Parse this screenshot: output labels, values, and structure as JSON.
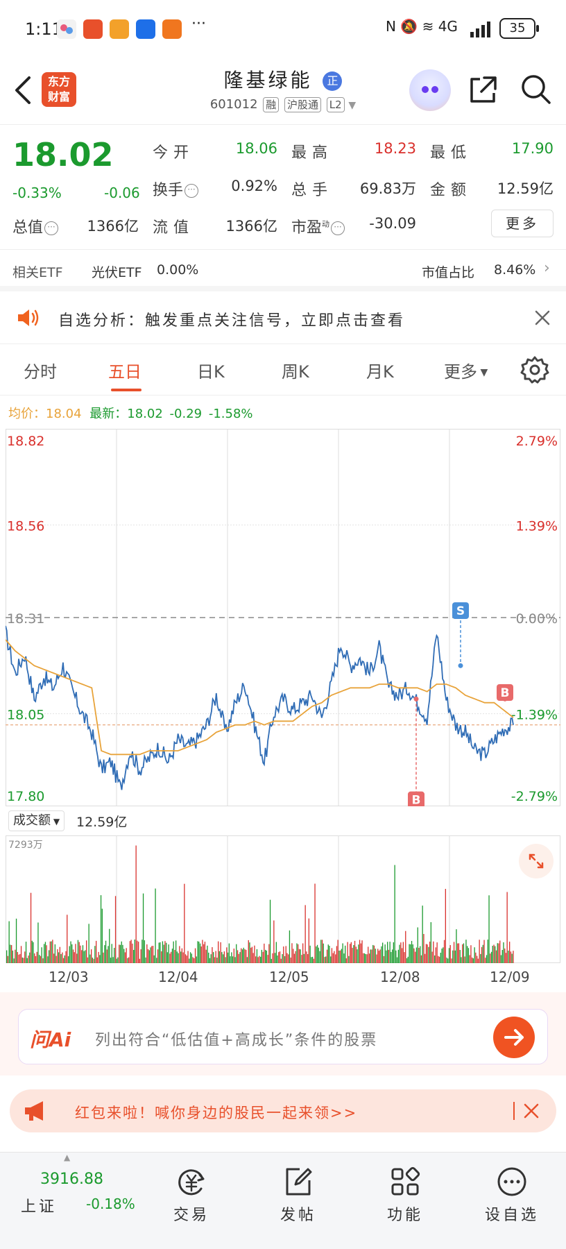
{
  "status_bar": {
    "time": "1:11",
    "more": "···",
    "right_icons": "N  🔕  ≋  4G",
    "battery": "35"
  },
  "header": {
    "logo_line1": "东方",
    "logo_line2": "财富",
    "stock_name": "隆基绿能",
    "name_badge": "正",
    "stock_code": "601012",
    "tags": [
      "融",
      "沪股通",
      "L2"
    ]
  },
  "quote": {
    "price": "18.02",
    "change_pct": "-0.33%",
    "change": "-0.06",
    "open_label": "今开",
    "open": "18.06",
    "high_label": "最高",
    "high": "18.23",
    "low_label": "最低",
    "low": "17.90",
    "turnover_label": "换手",
    "turnover": "0.92%",
    "volume_label": "总手",
    "volume": "69.83万",
    "amount_label": "金额",
    "amount": "12.59亿",
    "mcap_label": "总值",
    "mcap": "1366亿",
    "float_label": "流值",
    "float": "1366亿",
    "pe_label": "市盈",
    "pe_sup": "动",
    "pe": "-30.09",
    "more_button": "更多"
  },
  "etf": {
    "label": "相关ETF",
    "name": "光伏ETF",
    "value": "0.00%",
    "ratio_label": "市值占比",
    "ratio": "8.46%"
  },
  "notice": {
    "text": "自选分析：触发重点关注信号，立即点击查看"
  },
  "tabs": {
    "items": [
      "分时",
      "五日",
      "日K",
      "周K",
      "月K",
      "更多"
    ],
    "active": "五日"
  },
  "avg_line": {
    "avg_label": "均价：18.04",
    "latest_label": "最新：18.02",
    "change": "-0.29",
    "change_pct": "-1.58%"
  },
  "chart_data": {
    "type": "line",
    "title": "",
    "y_left_ticks": [
      "18.82",
      "18.56",
      "18.31",
      "18.05",
      "17.80"
    ],
    "y_right_ticks": [
      "2.79%",
      "1.39%",
      "0.00%",
      "-1.39%",
      "-2.79%"
    ],
    "prev_close": 18.31,
    "ylim": [
      17.8,
      18.82
    ],
    "x_ticks": [
      "12/03",
      "12/04",
      "12/05",
      "12/08",
      "12/09"
    ],
    "series": [
      {
        "name": "最新",
        "color": "#2f6cb5",
        "values": [
          18.27,
          18.16,
          18.21,
          18.09,
          18.15,
          18.12,
          18.18,
          18.11,
          18.05,
          18.0,
          17.9,
          17.92,
          17.85,
          17.95,
          17.9,
          17.93,
          17.96,
          17.92,
          17.98,
          17.96,
          17.98,
          18.02,
          18.1,
          18.0,
          18.08,
          18.13,
          18.02,
          17.92,
          18.05,
          18.09,
          18.06,
          18.08,
          18.1,
          18.04,
          18.13,
          18.24,
          18.18,
          18.2,
          18.16,
          18.23,
          18.12,
          18.1,
          18.12,
          18.08,
          18.04,
          18.27,
          18.09,
          18.02,
          18.0,
          17.95,
          17.94,
          17.98,
          18.01,
          18.02
        ]
      },
      {
        "name": "均价",
        "color": "#e8a33a",
        "values": [
          18.25,
          18.22,
          18.2,
          18.18,
          18.17,
          18.16,
          18.15,
          18.14,
          18.13,
          18.12,
          17.95,
          17.94,
          17.94,
          17.94,
          17.94,
          17.95,
          17.95,
          17.95,
          17.95,
          17.96,
          17.97,
          17.98,
          18.0,
          18.01,
          18.02,
          18.02,
          18.03,
          18.02,
          18.03,
          18.03,
          18.03,
          18.05,
          18.07,
          18.08,
          18.1,
          18.11,
          18.12,
          18.12,
          18.12,
          18.13,
          18.13,
          18.12,
          18.12,
          18.12,
          18.11,
          18.13,
          18.13,
          18.12,
          18.1,
          18.09,
          18.08,
          18.08,
          18.06,
          18.04
        ]
      }
    ],
    "markers": [
      {
        "label": "S",
        "color": "#4a90d9",
        "at": 0.82
      },
      {
        "label": "B",
        "color": "#e86a6a",
        "at": 0.74
      },
      {
        "label": "B",
        "color": "#e86a6a",
        "at": 0.9
      }
    ],
    "volume_label": "成交额",
    "volume_total": "12.59亿",
    "volume_max_label": "7293万"
  },
  "ai": {
    "logo": "问Ai",
    "prompt": "列出符合“低估值+高成长”条件的股票"
  },
  "promo": {
    "text": "红包来啦！喊你身边的股民一起来领>>"
  },
  "bottom_nav": {
    "index_value": "3916.88",
    "index_name": "上证",
    "index_change": "-0.18%",
    "items": [
      "交易",
      "发帖",
      "功能",
      "设自选"
    ]
  },
  "colors": {
    "brand": "#e8502b",
    "up": "#d9302c",
    "down": "#1b9a2e",
    "price_line": "#2f6cb5",
    "avg_line": "#e8a33a"
  }
}
